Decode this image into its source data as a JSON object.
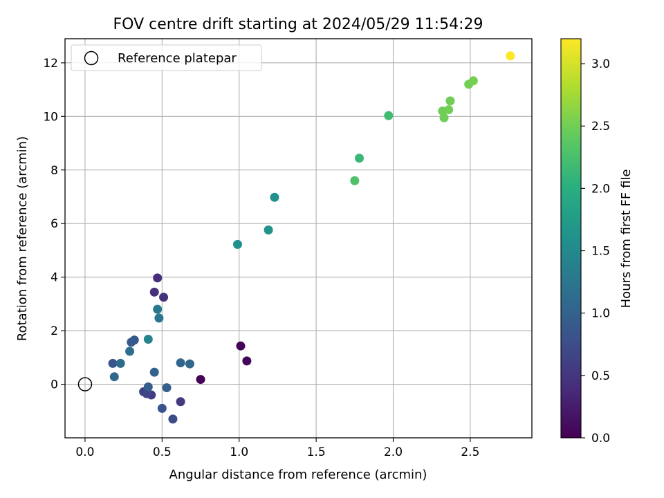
{
  "chart_data": {
    "type": "scatter",
    "title": "FOV centre drift starting at 2024/05/29 11:54:29",
    "xlabel": "Angular distance from reference (arcmin)",
    "ylabel": "Rotation from reference (arcmin)",
    "xlim": [
      -0.13,
      2.9
    ],
    "ylim": [
      -2.0,
      12.9
    ],
    "xticks": [
      0.0,
      0.5,
      1.0,
      1.5,
      2.0,
      2.5
    ],
    "xtick_labels": [
      "0.0",
      "0.5",
      "1.0",
      "1.5",
      "2.0",
      "2.5"
    ],
    "yticks": [
      0,
      2,
      4,
      6,
      8,
      10,
      12
    ],
    "ytick_labels": [
      "0",
      "2",
      "4",
      "6",
      "8",
      "10",
      "12"
    ],
    "grid": true,
    "legend": {
      "position": "top-left",
      "entries": [
        "Reference platepar"
      ]
    },
    "reference_point": {
      "x": 0.0,
      "y": 0.0
    },
    "colorbar": {
      "label": "Hours from first FF file",
      "colormap": "viridis",
      "range": [
        0.0,
        3.2
      ],
      "ticks": [
        0.0,
        0.5,
        1.0,
        1.5,
        2.0,
        2.5,
        3.0
      ],
      "tick_labels": [
        "0.0",
        "0.5",
        "1.0",
        "1.5",
        "2.0",
        "2.5",
        "3.0"
      ]
    },
    "points": [
      {
        "x": 0.75,
        "y": 0.18,
        "c": 0.02
      },
      {
        "x": 1.01,
        "y": 1.43,
        "c": 0.03
      },
      {
        "x": 1.05,
        "y": 0.87,
        "c": 0.05
      },
      {
        "x": 0.47,
        "y": 3.97,
        "c": 0.42
      },
      {
        "x": 0.45,
        "y": 3.44,
        "c": 0.45
      },
      {
        "x": 0.51,
        "y": 3.25,
        "c": 0.47
      },
      {
        "x": 0.62,
        "y": -0.65,
        "c": 0.55
      },
      {
        "x": 0.43,
        "y": -0.4,
        "c": 0.58
      },
      {
        "x": 0.38,
        "y": -0.28,
        "c": 0.62
      },
      {
        "x": 0.4,
        "y": -0.35,
        "c": 0.65
      },
      {
        "x": 0.57,
        "y": -1.3,
        "c": 0.75
      },
      {
        "x": 0.5,
        "y": -0.9,
        "c": 0.82
      },
      {
        "x": 0.18,
        "y": 0.78,
        "c": 0.85
      },
      {
        "x": 0.32,
        "y": 1.65,
        "c": 0.88
      },
      {
        "x": 0.3,
        "y": 1.57,
        "c": 0.9
      },
      {
        "x": 0.41,
        "y": -0.1,
        "c": 0.95
      },
      {
        "x": 0.53,
        "y": -0.13,
        "c": 0.97
      },
      {
        "x": 0.45,
        "y": 0.45,
        "c": 1.0
      },
      {
        "x": 0.62,
        "y": 0.8,
        "c": 1.05
      },
      {
        "x": 0.68,
        "y": 0.76,
        "c": 1.08
      },
      {
        "x": 0.19,
        "y": 0.28,
        "c": 1.1
      },
      {
        "x": 0.23,
        "y": 0.78,
        "c": 1.12
      },
      {
        "x": 0.29,
        "y": 1.23,
        "c": 1.15
      },
      {
        "x": 0.48,
        "y": 2.47,
        "c": 1.25
      },
      {
        "x": 0.47,
        "y": 2.8,
        "c": 1.3
      },
      {
        "x": 0.41,
        "y": 1.68,
        "c": 1.45
      },
      {
        "x": 0.99,
        "y": 5.22,
        "c": 1.6
      },
      {
        "x": 1.19,
        "y": 5.76,
        "c": 1.65
      },
      {
        "x": 1.23,
        "y": 6.98,
        "c": 1.62
      },
      {
        "x": 1.78,
        "y": 8.44,
        "c": 2.15
      },
      {
        "x": 1.75,
        "y": 7.6,
        "c": 2.3
      },
      {
        "x": 1.97,
        "y": 10.03,
        "c": 2.2
      },
      {
        "x": 2.32,
        "y": 10.2,
        "c": 2.5
      },
      {
        "x": 2.33,
        "y": 9.95,
        "c": 2.5
      },
      {
        "x": 2.36,
        "y": 10.25,
        "c": 2.52
      },
      {
        "x": 2.37,
        "y": 10.58,
        "c": 2.5
      },
      {
        "x": 2.49,
        "y": 11.2,
        "c": 2.52
      },
      {
        "x": 2.52,
        "y": 11.33,
        "c": 2.53
      },
      {
        "x": 2.76,
        "y": 12.26,
        "c": 3.2
      }
    ]
  }
}
